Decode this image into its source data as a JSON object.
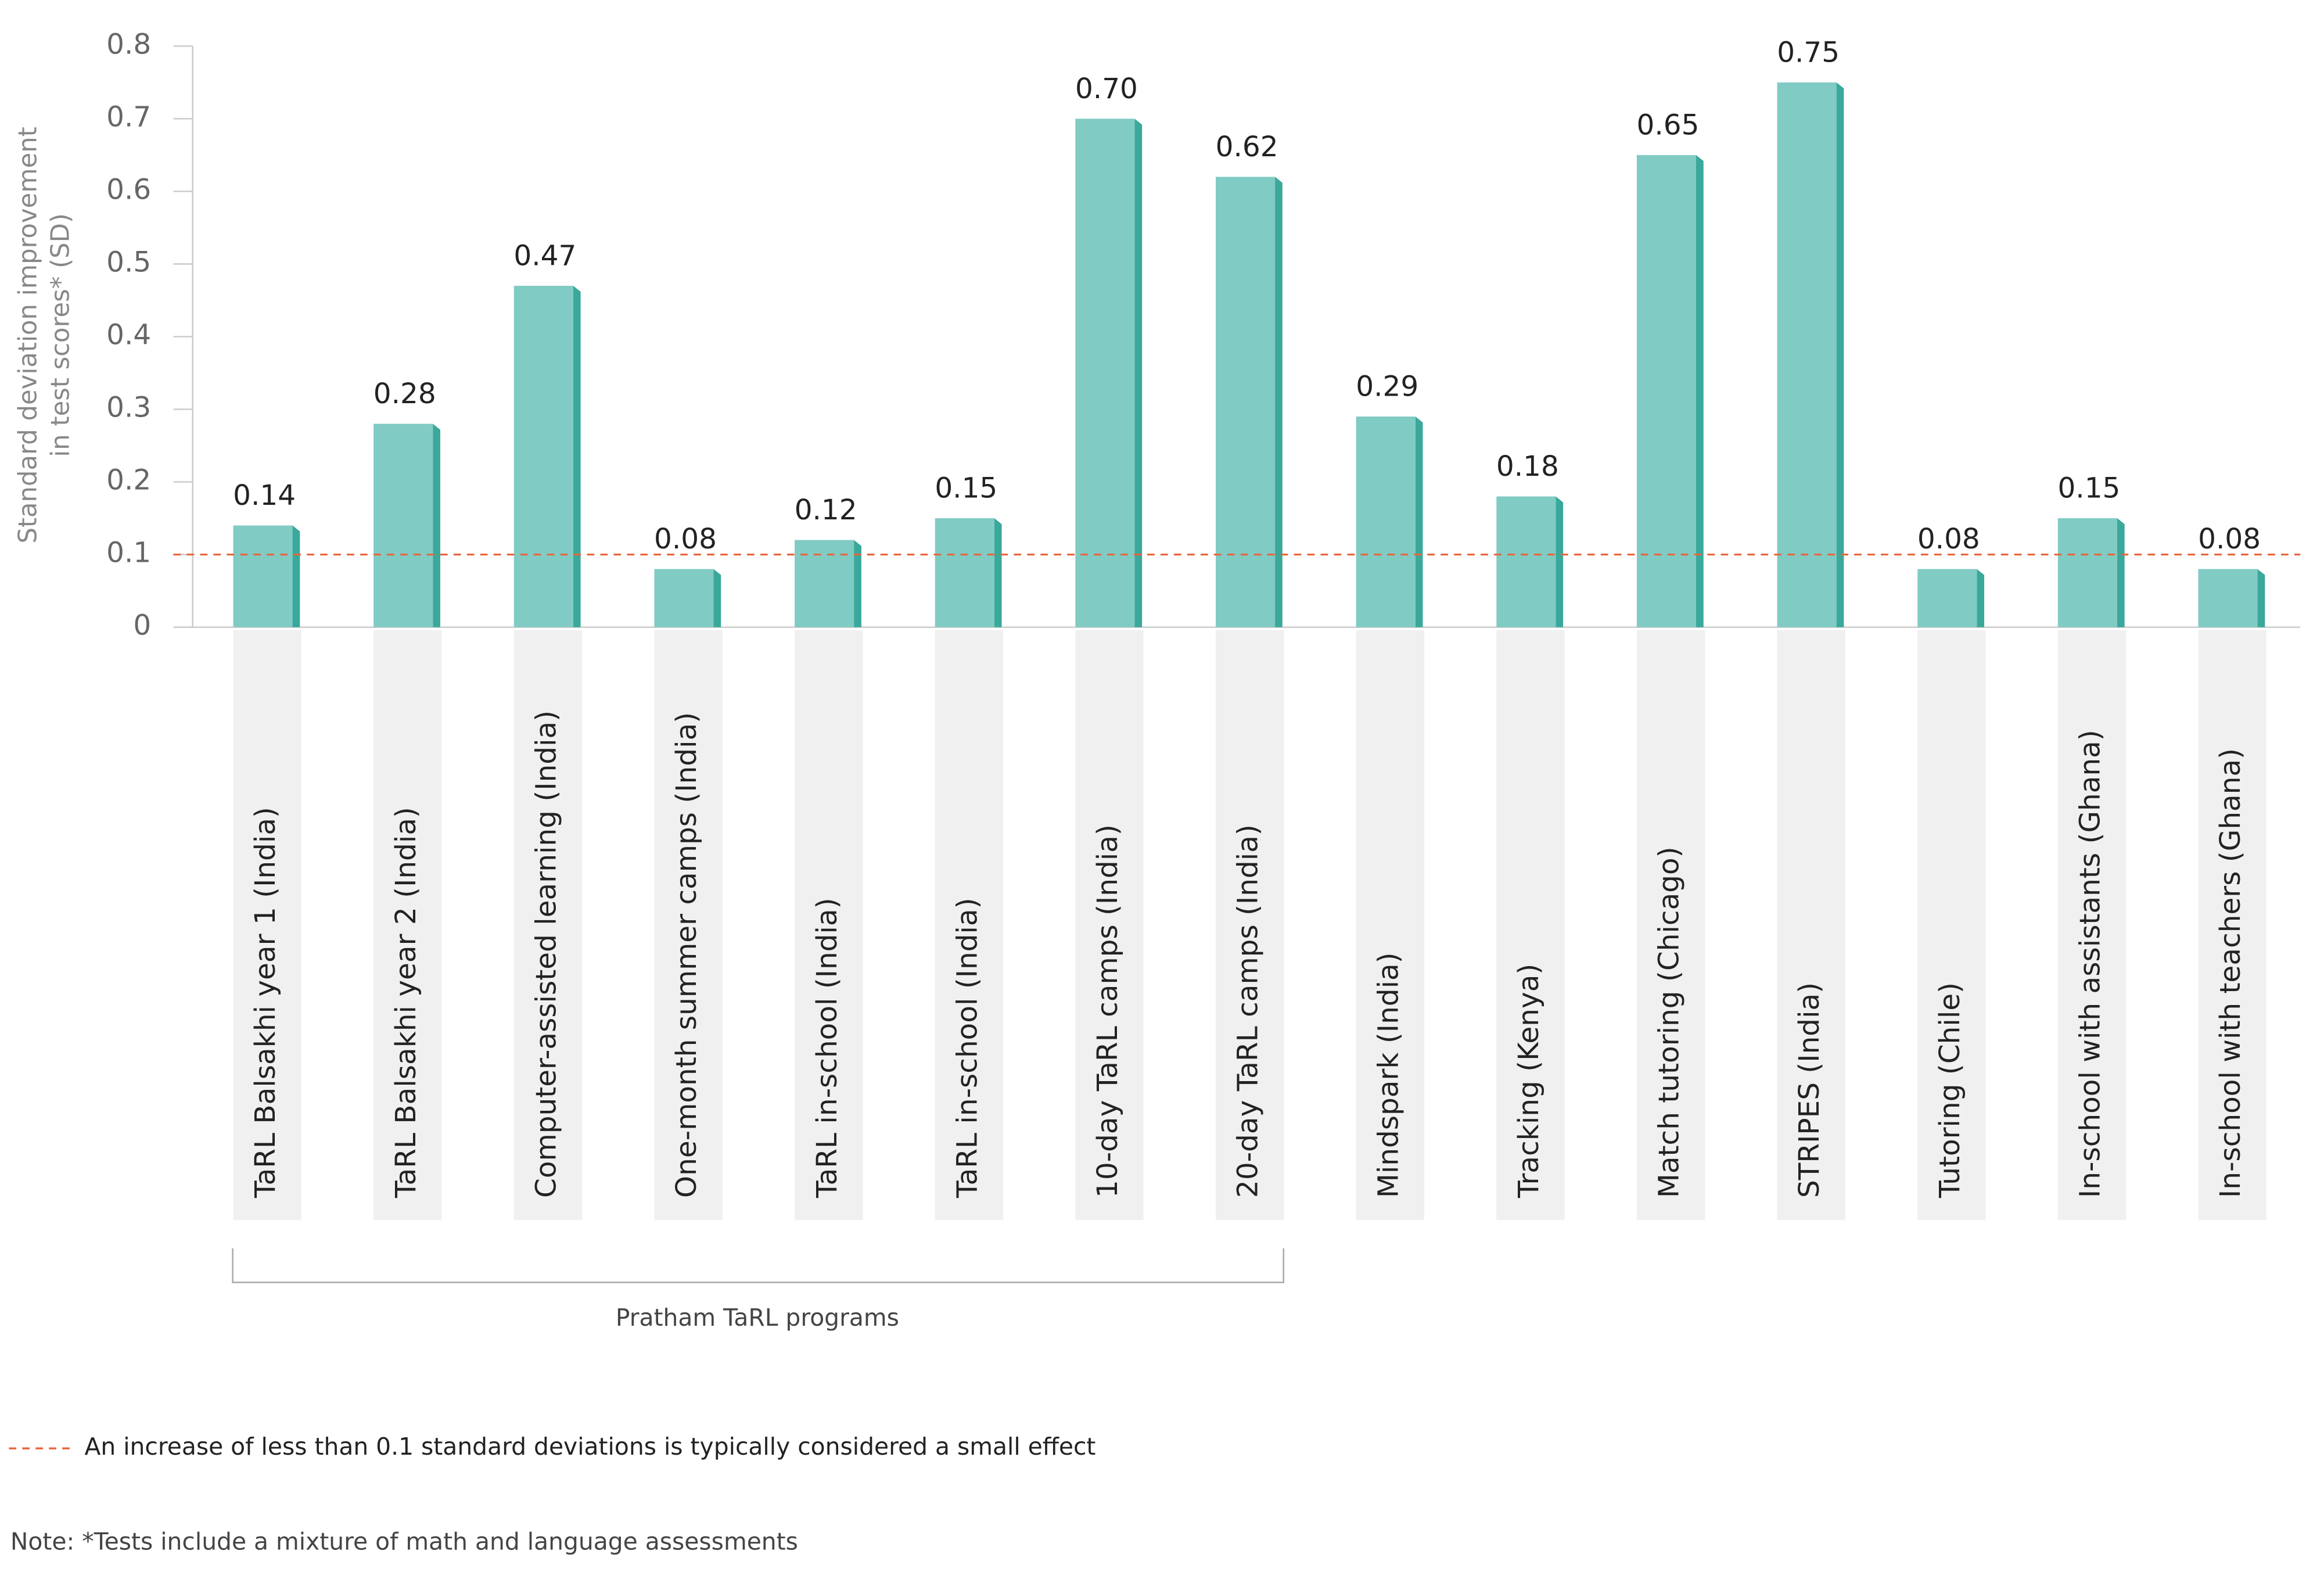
{
  "chart_data": {
    "type": "bar",
    "ylabel": [
      "Standard deviation improvement",
      "in test scores* (SD)"
    ],
    "categories": [
      "TaRL Balsakhi year 1 (India)",
      "TaRL Balsakhi year 2 (India)",
      "Computer-assisted learning (India)",
      "One-month summer camps (India)",
      "TaRL in-school (India)",
      "TaRL in-school (India)",
      "10-day TaRL camps (India)",
      "20-day TaRL camps (India)",
      "Mindspark (India)",
      "Tracking (Kenya)",
      "Match tutoring (Chicago)",
      "STRIPES (India)",
      "Tutoring (Chile)",
      "In-school with assistants (Ghana)",
      "In-school with teachers (Ghana)"
    ],
    "values": [
      0.14,
      0.28,
      0.47,
      0.08,
      0.12,
      0.15,
      0.7,
      0.62,
      0.29,
      0.18,
      0.65,
      0.75,
      0.08,
      0.15,
      0.08
    ],
    "value_labels": [
      "0.14",
      "0.28",
      "0.47",
      "0.08",
      "0.12",
      "0.15",
      "0.70",
      "0.62",
      "0.29",
      "0.18",
      "0.65",
      "0.75",
      "0.08",
      "0.15",
      "0.08"
    ],
    "color": "#80cbc4",
    "side_color": "#3aa89b",
    "ylim": [
      0,
      0.8
    ],
    "yticks": [
      0,
      0.1,
      0.2,
      0.3,
      0.4,
      0.5,
      0.6,
      0.7,
      0.8
    ],
    "group_label": "Pratham TaRL programs",
    "reference_line": {
      "value": 0.1,
      "color": "#e8663d",
      "label": "An increase of less than 0.1 standard deviations is typically considered a small effect"
    },
    "note": "Note: *Tests include a mixture of math and language assessments"
  }
}
